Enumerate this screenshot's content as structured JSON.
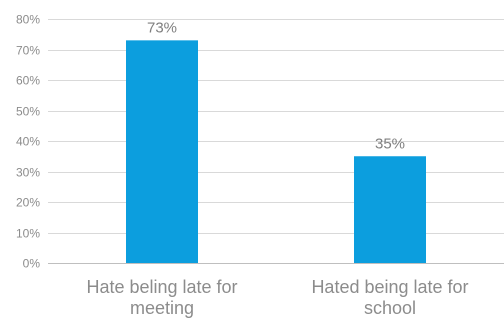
{
  "chart_data": {
    "type": "bar",
    "categories": [
      [
        "Hate beling late for",
        "meeting"
      ],
      [
        "Hated being late for",
        "school"
      ]
    ],
    "values": [
      73,
      35
    ],
    "data_labels": [
      "73%",
      "35%"
    ],
    "ylim": [
      0,
      80
    ],
    "y_ticks": [
      0,
      10,
      20,
      30,
      40,
      50,
      60,
      70,
      80
    ],
    "y_tick_labels": [
      "0%",
      "10%",
      "20%",
      "30%",
      "40%",
      "50%",
      "60%",
      "70%",
      "80%"
    ],
    "grid": true,
    "legend": "none",
    "colors": {
      "bar": "#0c9ede"
    }
  }
}
